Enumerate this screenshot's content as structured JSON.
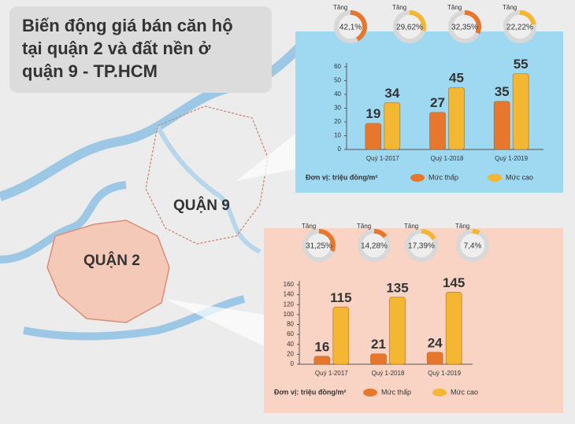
{
  "title": [
    "Biến động giá bán căn hộ",
    "tại quận 2 và đất nền ở",
    "quận 9 - TP.HCM"
  ],
  "map_labels": [
    "QUẬN 9",
    "QUẬN 2"
  ],
  "chart_data": [
    {
      "type": "bar",
      "background": "#9fd8f1",
      "categories": [
        "Quý 1-2017",
        "Quý 1-2018",
        "Quý 1-2019"
      ],
      "series": [
        {
          "name": "Mức thấp",
          "color": "#e8772e",
          "values": [
            19,
            27,
            35
          ]
        },
        {
          "name": "Mức cao",
          "color": "#f3b733",
          "values": [
            34,
            45,
            55
          ]
        }
      ],
      "ylim": [
        0,
        60
      ],
      "yticks": [
        0,
        10,
        20,
        30,
        40,
        50,
        60
      ],
      "unit": "Đơn vị: triệu đồng/m²",
      "annotations": {
        "label": "Tăng",
        "values": [
          42.1,
          29.62,
          32.35,
          22.22
        ],
        "value_labels": [
          "42,1%",
          "29,62%",
          "32,35%",
          "22,22%"
        ],
        "colors": [
          "#e8772e",
          "#f3b733",
          "#e8772e",
          "#f3b733"
        ]
      }
    },
    {
      "type": "bar",
      "background": "#f9d4c4",
      "categories": [
        "Quý 1-2017",
        "Quý 1-2018",
        "Quý 1-2019"
      ],
      "series": [
        {
          "name": "Mức thấp",
          "color": "#e8772e",
          "values": [
            16,
            21,
            24
          ]
        },
        {
          "name": "Mức cao",
          "color": "#f3b733",
          "values": [
            115,
            135,
            145
          ]
        }
      ],
      "ylim": [
        0,
        160
      ],
      "yticks": [
        0,
        20,
        40,
        60,
        80,
        100,
        120,
        140,
        160
      ],
      "unit": "Đơn vị: triệu đồng/m²",
      "annotations": {
        "label": "Tăng",
        "values": [
          31.25,
          14.28,
          17.39,
          7.4
        ],
        "value_labels": [
          "31,25%",
          "14,28%",
          "17,39%",
          "7,4%"
        ],
        "colors": [
          "#e8772e",
          "#e8772e",
          "#f3b733",
          "#f3b733"
        ]
      }
    }
  ]
}
